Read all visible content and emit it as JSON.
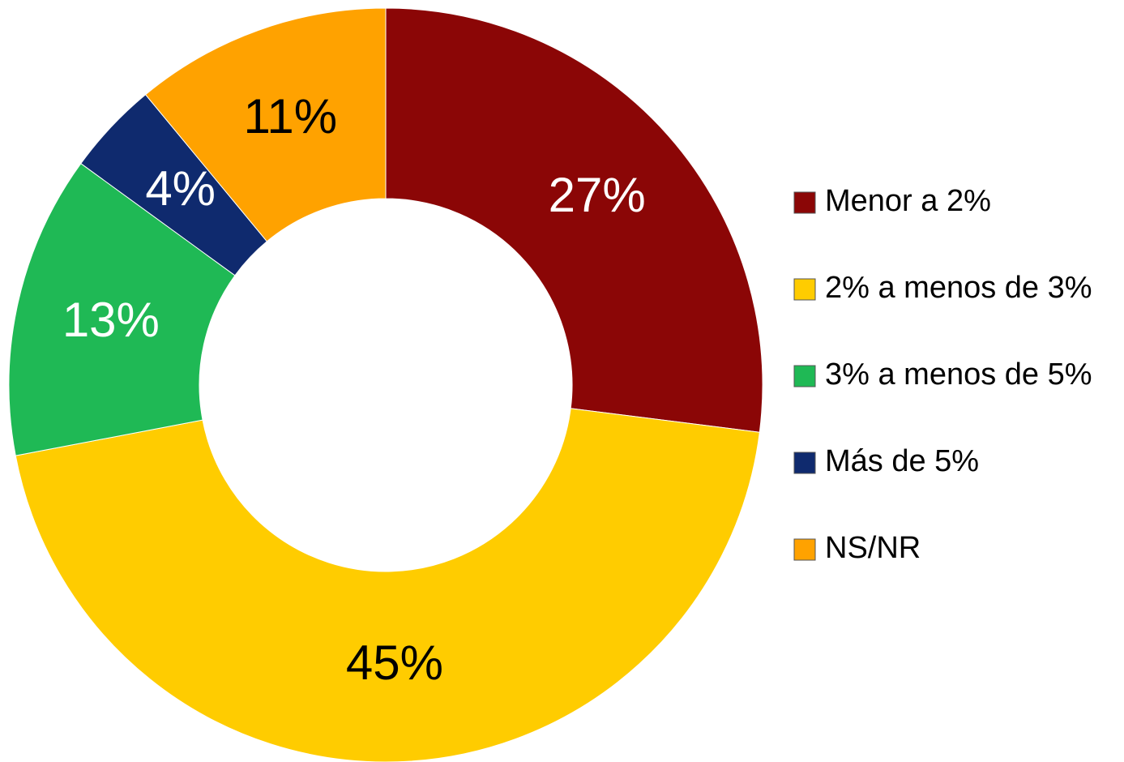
{
  "chart_data": {
    "type": "pie",
    "categories": [
      "Menor a 2%",
      "2% a menos de 3%",
      "3% a menos de 5%",
      "Más de 5%",
      "NS/NR"
    ],
    "values": [
      27,
      45,
      13,
      4,
      11
    ],
    "value_labels": [
      "27%",
      "45%",
      "13%",
      "4%",
      "11%"
    ],
    "colors": [
      "#8b0606",
      "#ffcc00",
      "#1fb955",
      "#0f2a6e",
      "#ffa200"
    ],
    "legend": "right"
  }
}
